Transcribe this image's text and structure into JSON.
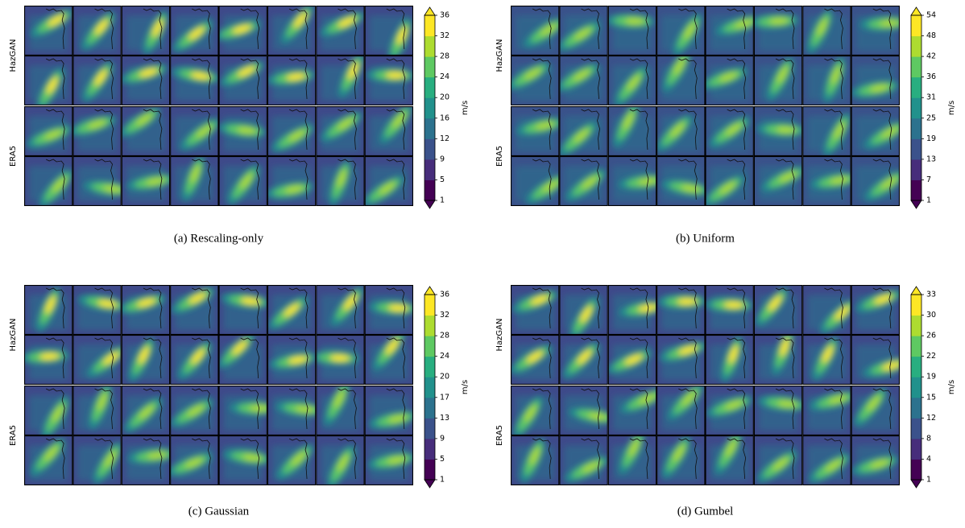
{
  "panels": [
    {
      "caption": "(a) Rescaling-only",
      "rows": [
        "HazGAN",
        "ERA5"
      ],
      "colorbar": {
        "unit": "m/s",
        "ticks": [
          1,
          5,
          9,
          12,
          16,
          20,
          24,
          28,
          32,
          36
        ]
      }
    },
    {
      "caption": "(b) Uniform",
      "rows": [
        "HazGAN",
        "ERA5"
      ],
      "colorbar": {
        "unit": "m/s",
        "ticks": [
          1,
          7,
          13,
          19,
          25,
          31,
          36,
          42,
          48,
          54
        ]
      }
    },
    {
      "caption": "(c) Gaussian",
      "rows": [
        "HazGAN",
        "ERA5"
      ],
      "colorbar": {
        "unit": "m/s",
        "ticks": [
          1,
          5,
          9,
          13,
          17,
          20,
          24,
          28,
          32,
          36
        ]
      }
    },
    {
      "caption": "(d) Gumbel",
      "rows": [
        "HazGAN",
        "ERA5"
      ],
      "colorbar": {
        "unit": "m/s",
        "ticks": [
          1,
          4,
          8,
          12,
          15,
          19,
          22,
          26,
          30,
          33
        ]
      }
    }
  ]
}
